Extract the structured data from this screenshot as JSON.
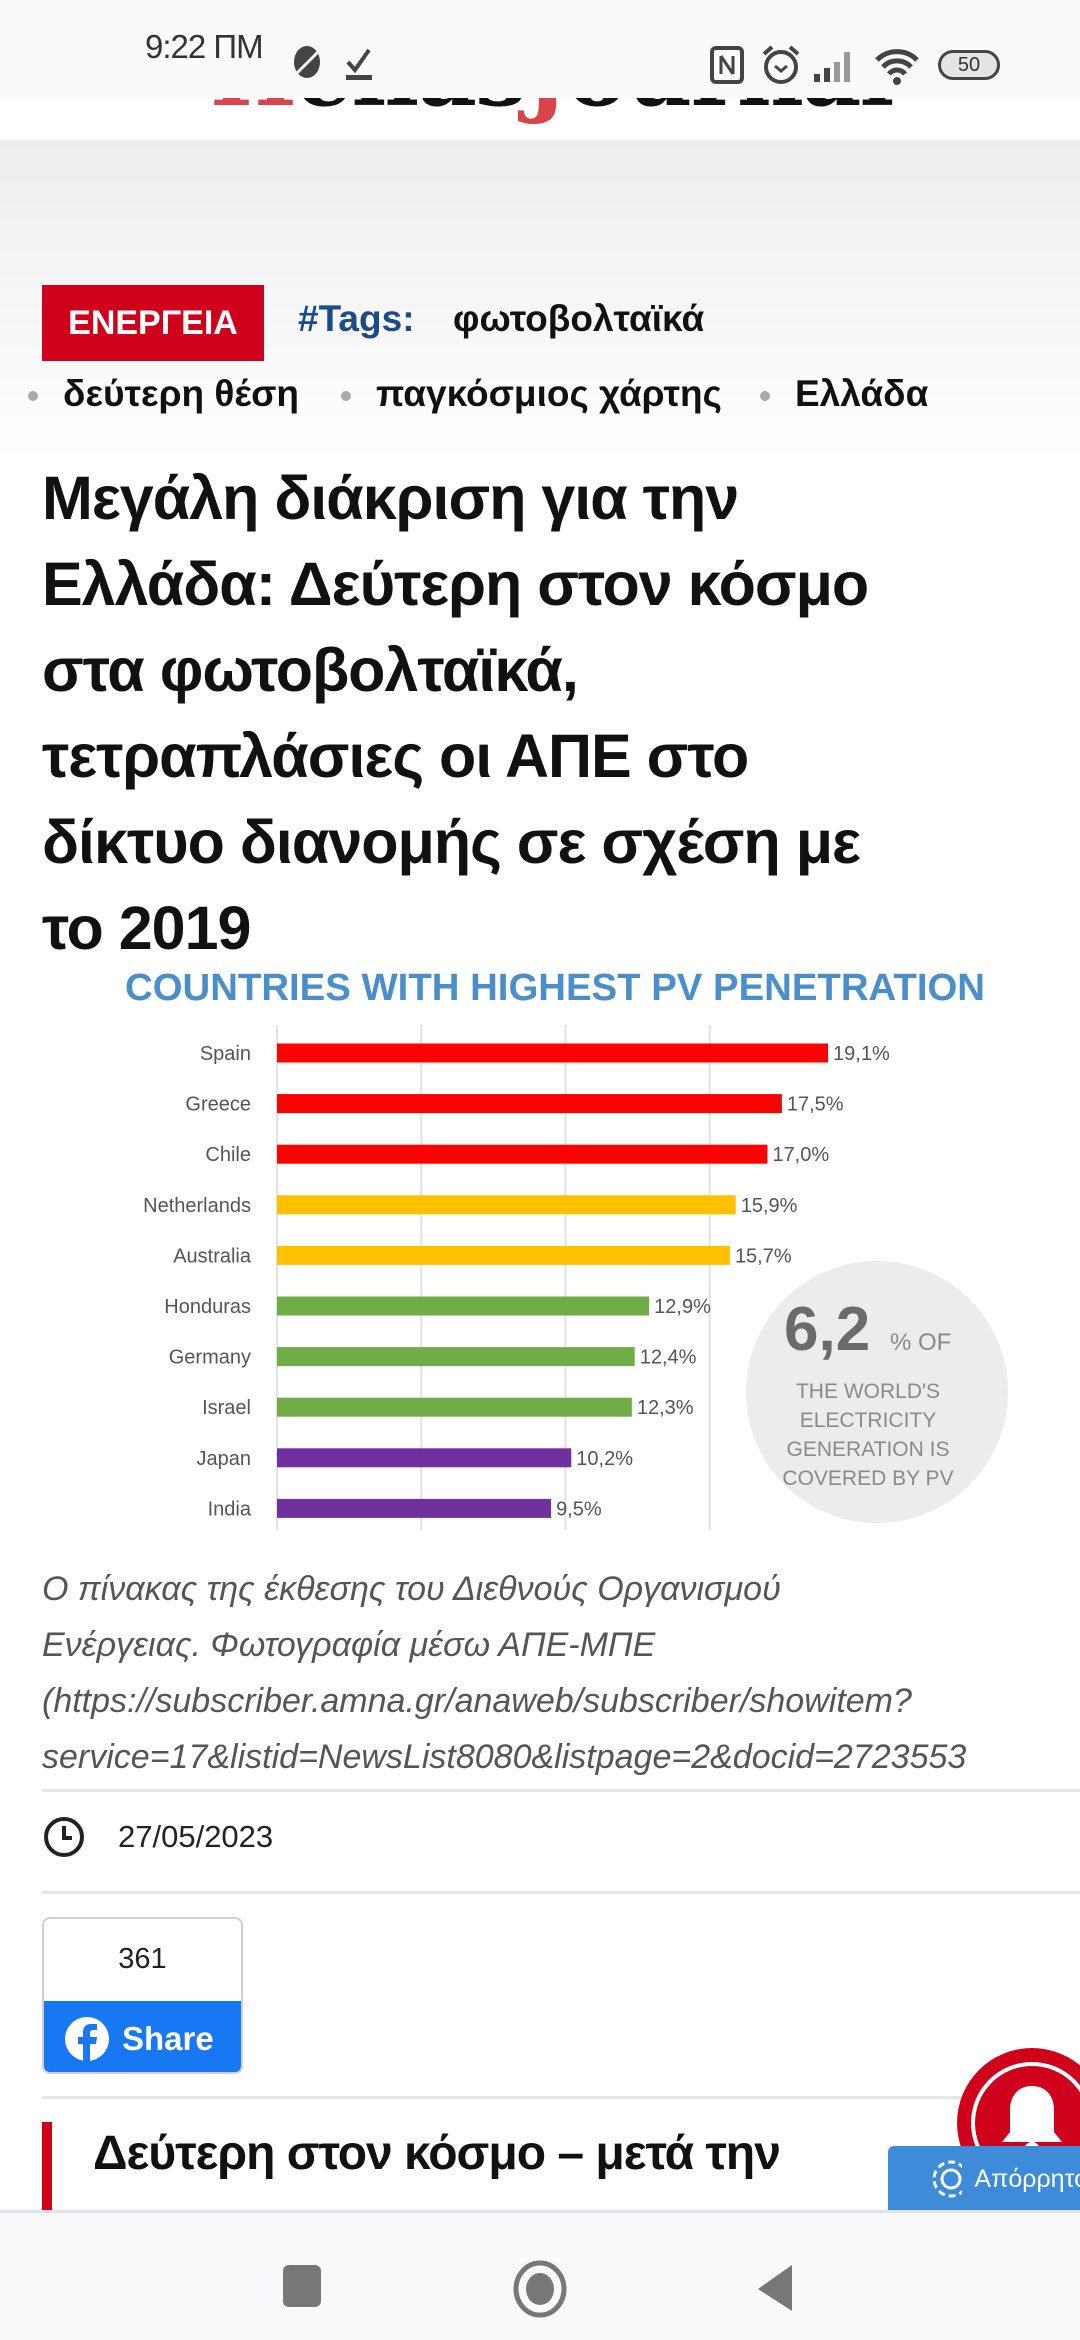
{
  "status_bar": {
    "time": "9:22 ПМ",
    "battery": "50"
  },
  "site": {
    "logo_parts": [
      "H",
      "ellas",
      "J",
      "ournal"
    ]
  },
  "article": {
    "category": "ΕΝΕΡΓΕΙΑ",
    "tags_label": "#Tags:",
    "tags": [
      "φωτοβολταϊκά",
      "δεύτερη θέση",
      "παγκόσμιος χάρτης",
      "Ελλάδα"
    ],
    "headline_lines": [
      "Μεγάλη διάκριση για την",
      "Ελλάδα: Δεύτερη στον κόσμο",
      "στα φωτοβολταϊκά,",
      "τετραπλάσιες οι ΑΠΕ στο",
      "δίκτυο διανομής σε σχέση με",
      "το 2019"
    ],
    "caption_lines": [
      "Ο πίνακας της έκθεσης του Διεθνούς Οργανισμού",
      "Ενέργειας. Φωτογραφία μέσω ΑΠΕ-ΜΠΕ",
      "(https://subscriber.amna.gr/anaweb/subscriber/showitem?",
      "service=17&listid=NewsList8080&listpage=2&docid=2723553"
    ],
    "date": "27/05/2023",
    "share_count": "361",
    "share_label": "Share",
    "related_headline": "Δεύτερη στον κόσμο – μετά την"
  },
  "privacy_button": "Απόρρητο",
  "chart_data": {
    "type": "bar",
    "title": "COUNTRIES WITH HIGHEST PV PENETRATION",
    "categories": [
      "Spain",
      "Greece",
      "Chile",
      "Netherlands",
      "Australia",
      "Honduras",
      "Germany",
      "Israel",
      "Japan",
      "India"
    ],
    "values": [
      19.1,
      17.5,
      17.0,
      15.9,
      15.7,
      12.9,
      12.4,
      12.3,
      10.2,
      9.5
    ],
    "value_labels": [
      "19,1%",
      "17,5%",
      "17,0%",
      "15,9%",
      "15,7%",
      "12,9%",
      "12,4%",
      "12,3%",
      "10,2%",
      "9,5%"
    ],
    "colors": [
      "#ff0000",
      "#ff0000",
      "#ff0000",
      "#ffc000",
      "#ffc000",
      "#70ad47",
      "#70ad47",
      "#70ad47",
      "#7030a0",
      "#7030a0"
    ],
    "xlim": [
      0,
      20
    ],
    "grid": true,
    "callout": {
      "big": "6,2",
      "small": "% OF",
      "lines": [
        "THE WORLD'S",
        "ELECTRICITY",
        "GENERATION IS",
        "COVERED BY PV"
      ]
    }
  }
}
